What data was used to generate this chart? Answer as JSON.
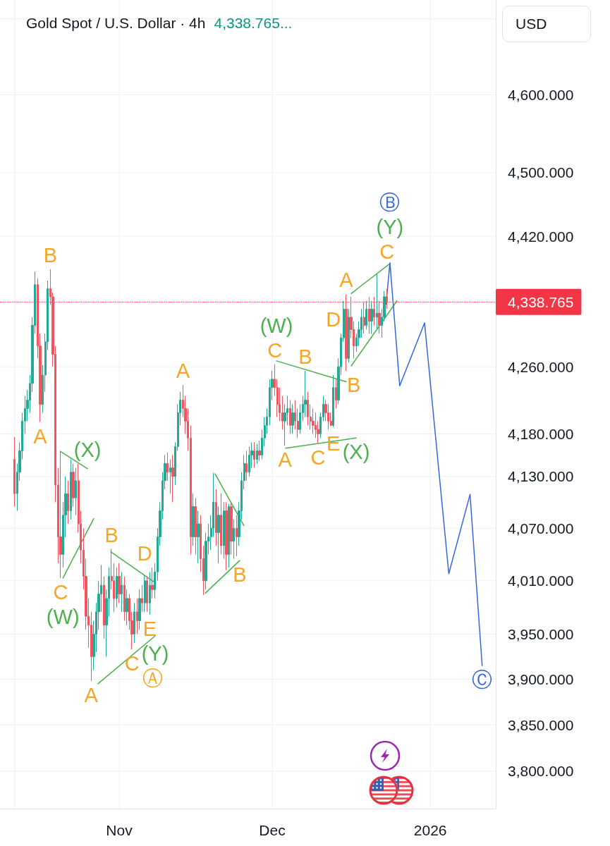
{
  "chart_data": {
    "type": "candlestick",
    "title": "Gold Spot / U.S. Dollar · 4h",
    "subtitle": "4,338.765...",
    "ylabel": "USD",
    "x": [
      "2025-10-11T12:00",
      "2025-10-12",
      "2025-10-12T12:00",
      "2025-10-13",
      "2025-10-13T12:00",
      "2025-10-14",
      "2025-10-14T12:00",
      "2025-10-15",
      "2025-10-15T12:00",
      "2025-10-16",
      "2025-10-16T12:00",
      "2025-10-17",
      "2025-10-17T12:00",
      "2025-10-18",
      "2025-10-18T12:00",
      "2025-10-19",
      "2025-10-19T12:00",
      "2025-10-20",
      "2025-10-20T12:00",
      "2025-10-21",
      "2025-10-21T12:00",
      "2025-10-22",
      "2025-10-22T12:00",
      "2025-10-23",
      "2025-10-23T12:00",
      "2025-10-24",
      "2025-10-24T12:00",
      "2025-10-25",
      "2025-10-25T12:00",
      "2025-10-26",
      "2025-10-26T12:00",
      "2025-10-27",
      "2025-10-27T12:00",
      "2025-10-28",
      "2025-10-28T12:00",
      "2025-10-29",
      "2025-10-29T12:00",
      "2025-10-30",
      "2025-10-30T12:00",
      "2025-10-31",
      "2025-10-31T12:00",
      "2025-11-01",
      "2025-11-01T12:00",
      "2025-11-02",
      "2025-11-02T12:00",
      "2025-11-03",
      "2025-11-03T12:00",
      "2025-11-04",
      "2025-11-04T12:00",
      "2025-11-05",
      "2025-11-05T12:00",
      "2025-11-06",
      "2025-11-06T12:00",
      "2025-11-07",
      "2025-11-07T12:00",
      "2025-11-08",
      "2025-11-08T12:00",
      "2025-11-09",
      "2025-11-09T12:00",
      "2025-11-10",
      "2025-11-10T12:00",
      "2025-11-11",
      "2025-11-11T12:00",
      "2025-11-12",
      "2025-11-12T12:00",
      "2025-11-13",
      "2025-11-13T12:00",
      "2025-11-14",
      "2025-11-14T12:00",
      "2025-11-15",
      "2025-11-15T12:00",
      "2025-11-16",
      "2025-11-16T12:00",
      "2025-11-17",
      "2025-11-17T12:00",
      "2025-11-18",
      "2025-11-18T12:00",
      "2025-11-19",
      "2025-11-19T12:00",
      "2025-11-20",
      "2025-11-20T12:00",
      "2025-11-21",
      "2025-11-21T12:00",
      "2025-11-22",
      "2025-11-22T12:00",
      "2025-11-23",
      "2025-11-23T12:00",
      "2025-11-24",
      "2025-11-24T12:00",
      "2025-11-25",
      "2025-11-25T12:00",
      "2025-11-26",
      "2025-11-26T12:00",
      "2025-11-27",
      "2025-11-27T12:00",
      "2025-11-28",
      "2025-11-28T12:00",
      "2025-11-29",
      "2025-11-29T12:00",
      "2025-11-30",
      "2025-11-30T12:00",
      "2025-12-01",
      "2025-12-01T12:00",
      "2025-12-02",
      "2025-12-02T12:00",
      "2025-12-03",
      "2025-12-03T12:00",
      "2025-12-04",
      "2025-12-04T12:00",
      "2025-12-05",
      "2025-12-05T12:00",
      "2025-12-06",
      "2025-12-06T12:00",
      "2025-12-07",
      "2025-12-07T12:00",
      "2025-12-08",
      "2025-12-08T12:00",
      "2025-12-09",
      "2025-12-09T12:00",
      "2025-12-10",
      "2025-12-10T12:00",
      "2025-12-11",
      "2025-12-11T12:00",
      "2025-12-12",
      "2025-12-12T12:00",
      "2025-12-13",
      "2025-12-13T12:00",
      "2025-12-14",
      "2025-12-14T12:00",
      "2025-12-15",
      "2025-12-15T12:00",
      "2025-12-16",
      "2025-12-16T12:00",
      "2025-12-17",
      "2025-12-17T12:00",
      "2025-12-18",
      "2025-12-18T12:00",
      "2025-12-19",
      "2025-12-19T12:00",
      "2025-12-20",
      "2025-12-20T12:00",
      "2025-12-21",
      "2025-12-21T12:00",
      "2025-12-22",
      "2025-12-22T12:00",
      "2025-12-23",
      "2025-12-23T12:00"
    ],
    "ohlc": [
      [
        4150,
        4176,
        4095,
        4110
      ],
      [
        4110,
        4145,
        4090,
        4135
      ],
      [
        4135,
        4170,
        4125,
        4160
      ],
      [
        4160,
        4205,
        4150,
        4195
      ],
      [
        4195,
        4225,
        4180,
        4210
      ],
      [
        4210,
        4232,
        4195,
        4220
      ],
      [
        4220,
        4250,
        4205,
        4240
      ],
      [
        4240,
        4320,
        4230,
        4310
      ],
      [
        4310,
        4376,
        4300,
        4360
      ],
      [
        4360,
        4368,
        4270,
        4285
      ],
      [
        4285,
        4300,
        4194,
        4215
      ],
      [
        4215,
        4262,
        4205,
        4250
      ],
      [
        4250,
        4300,
        4230,
        4290
      ],
      [
        4290,
        4365,
        4280,
        4355
      ],
      [
        4355,
        4379,
        4335,
        4345
      ],
      [
        4345,
        4350,
        4260,
        4275
      ],
      [
        4275,
        4285,
        4100,
        4120
      ],
      [
        4120,
        4140,
        4030,
        4060
      ],
      [
        4060,
        4160,
        4013,
        4040
      ],
      [
        4040,
        4100,
        4025,
        4085
      ],
      [
        4085,
        4130,
        4060,
        4110
      ],
      [
        4110,
        4125,
        4075,
        4090
      ],
      [
        4090,
        4150,
        4080,
        4135
      ],
      [
        4135,
        4145,
        4095,
        4105
      ],
      [
        4105,
        4140,
        4085,
        4125
      ],
      [
        4125,
        4145,
        4065,
        4075
      ],
      [
        4075,
        4090,
        4030,
        4045
      ],
      [
        4045,
        4070,
        4000,
        4015
      ],
      [
        4015,
        4035,
        3955,
        3970
      ],
      [
        3970,
        3990,
        3935,
        3960
      ],
      [
        3960,
        3975,
        3898,
        3925
      ],
      [
        3925,
        3965,
        3910,
        3950
      ],
      [
        3950,
        3985,
        3930,
        3975
      ],
      [
        3975,
        4010,
        3955,
        3995
      ],
      [
        3995,
        4028,
        3975,
        4005
      ],
      [
        4005,
        4015,
        3945,
        3960
      ],
      [
        3960,
        4000,
        3925,
        3990
      ],
      [
        3990,
        4025,
        3970,
        4015
      ],
      [
        4015,
        4046,
        4000,
        4010
      ],
      [
        4010,
        4030,
        3975,
        3990
      ],
      [
        3990,
        4025,
        3980,
        4015
      ],
      [
        4015,
        4030,
        3985,
        3995
      ],
      [
        3995,
        4020,
        3975,
        4005
      ],
      [
        4005,
        4015,
        3965,
        3975
      ],
      [
        3975,
        4000,
        3960,
        3990
      ],
      [
        3990,
        3995,
        3955,
        3965
      ],
      [
        3965,
        3975,
        3933,
        3950
      ],
      [
        3950,
        3985,
        3940,
        3975
      ],
      [
        3975,
        3990,
        3950,
        3965
      ],
      [
        3965,
        4000,
        3955,
        3990
      ],
      [
        3990,
        4005,
        3975,
        3985
      ],
      [
        3985,
        4016,
        3975,
        4010
      ],
      [
        4010,
        4015,
        3975,
        3985
      ],
      [
        3985,
        4020,
        3972,
        4005
      ],
      [
        4005,
        4025,
        3990,
        4000
      ],
      [
        4000,
        4030,
        3990,
        4020
      ],
      [
        4020,
        4070,
        4010,
        4060
      ],
      [
        4060,
        4100,
        4050,
        4090
      ],
      [
        4090,
        4135,
        4080,
        4125
      ],
      [
        4125,
        4155,
        4115,
        4145
      ],
      [
        4145,
        4158,
        4125,
        4135
      ],
      [
        4135,
        4150,
        4110,
        4140
      ],
      [
        4140,
        4155,
        4100,
        4130
      ],
      [
        4130,
        4170,
        4120,
        4165
      ],
      [
        4165,
        4215,
        4160,
        4205
      ],
      [
        4205,
        4230,
        4190,
        4220
      ],
      [
        4220,
        4238,
        4200,
        4210
      ],
      [
        4210,
        4225,
        4180,
        4195
      ],
      [
        4195,
        4210,
        4160,
        4175
      ],
      [
        4175,
        4190,
        4040,
        4060
      ],
      [
        4060,
        4110,
        4050,
        4095
      ],
      [
        4095,
        4105,
        4040,
        4060
      ],
      [
        4060,
        4090,
        4030,
        4075
      ],
      [
        4075,
        4085,
        4020,
        4035
      ],
      [
        4035,
        4050,
        3994,
        4010
      ],
      [
        4010,
        4065,
        4000,
        4055
      ],
      [
        4055,
        4075,
        4040,
        4060
      ],
      [
        4060,
        4085,
        4045,
        4070
      ],
      [
        4070,
        4134,
        4060,
        4100
      ],
      [
        4100,
        4115,
        4050,
        4065
      ],
      [
        4065,
        4095,
        4030,
        4085
      ],
      [
        4085,
        4110,
        4040,
        4050
      ],
      [
        4050,
        4100,
        4035,
        4090
      ],
      [
        4090,
        4100,
        4022,
        4040
      ],
      [
        4040,
        4098,
        4025,
        4095
      ],
      [
        4095,
        4100,
        4040,
        4055
      ],
      [
        4055,
        4080,
        4035,
        4070
      ],
      [
        4070,
        4085,
        4038,
        4060
      ],
      [
        4060,
        4100,
        4050,
        4090
      ],
      [
        4090,
        4135,
        4080,
        4125
      ],
      [
        4125,
        4155,
        4115,
        4145
      ],
      [
        4145,
        4160,
        4125,
        4135
      ],
      [
        4135,
        4165,
        4130,
        4155
      ],
      [
        4155,
        4170,
        4140,
        4160
      ],
      [
        4160,
        4170,
        4140,
        4150
      ],
      [
        4150,
        4168,
        4145,
        4160
      ],
      [
        4160,
        4172,
        4148,
        4155
      ],
      [
        4155,
        4185,
        4150,
        4175
      ],
      [
        4175,
        4200,
        4165,
        4190
      ],
      [
        4190,
        4210,
        4180,
        4200
      ],
      [
        4200,
        4245,
        4190,
        4235
      ],
      [
        4235,
        4255,
        4220,
        4245
      ],
      [
        4245,
        4263,
        4225,
        4235
      ],
      [
        4235,
        4245,
        4200,
        4215
      ],
      [
        4215,
        4235,
        4195,
        4205
      ],
      [
        4205,
        4225,
        4185,
        4195
      ],
      [
        4195,
        4215,
        4166,
        4205
      ],
      [
        4205,
        4225,
        4190,
        4210
      ],
      [
        4210,
        4220,
        4180,
        4190
      ],
      [
        4190,
        4215,
        4180,
        4205
      ],
      [
        4205,
        4220,
        4185,
        4195
      ],
      [
        4195,
        4210,
        4175,
        4185
      ],
      [
        4185,
        4215,
        4180,
        4205
      ],
      [
        4205,
        4225,
        4195,
        4215
      ],
      [
        4215,
        4255,
        4200,
        4220
      ],
      [
        4220,
        4230,
        4190,
        4200
      ],
      [
        4200,
        4215,
        4185,
        4195
      ],
      [
        4195,
        4210,
        4180,
        4190
      ],
      [
        4190,
        4205,
        4175,
        4185
      ],
      [
        4185,
        4195,
        4169,
        4180
      ],
      [
        4180,
        4205,
        4175,
        4200
      ],
      [
        4200,
        4225,
        4195,
        4215
      ],
      [
        4215,
        4220,
        4195,
        4205
      ],
      [
        4205,
        4215,
        4185,
        4195
      ],
      [
        4195,
        4205,
        4189,
        4190
      ],
      [
        4190,
        4250,
        4188,
        4235
      ],
      [
        4235,
        4245,
        4210,
        4220
      ],
      [
        4220,
        4270,
        4215,
        4260
      ],
      [
        4260,
        4300,
        4250,
        4295
      ],
      [
        4295,
        4340,
        4290,
        4330
      ],
      [
        4330,
        4348,
        4255,
        4270
      ],
      [
        4270,
        4330,
        4265,
        4320
      ],
      [
        4320,
        4345,
        4295,
        4305
      ],
      [
        4305,
        4315,
        4270,
        4285
      ],
      [
        4285,
        4300,
        4278,
        4295
      ],
      [
        4295,
        4315,
        4285,
        4305
      ],
      [
        4305,
        4330,
        4295,
        4320
      ],
      [
        4320,
        4338,
        4300,
        4310
      ],
      [
        4310,
        4340,
        4305,
        4330
      ],
      [
        4330,
        4345,
        4300,
        4315
      ],
      [
        4315,
        4340,
        4300,
        4330
      ],
      [
        4330,
        4345,
        4310,
        4320
      ],
      [
        4320,
        4373,
        4305,
        4325
      ],
      [
        4325,
        4340,
        4300,
        4310
      ],
      [
        4310,
        4330,
        4295,
        4320
      ],
      [
        4320,
        4352,
        4315,
        4345
      ],
      [
        4345,
        4355,
        4330,
        4338.765
      ]
    ],
    "colors": [
      "#f7525f",
      "#22ab94",
      "#22ab94",
      "#22ab94",
      "#22ab94",
      "#22ab94",
      "#22ab94",
      "#22ab94",
      "#22ab94",
      "#f7525f",
      "#f7525f",
      "#22ab94",
      "#22ab94",
      "#22ab94",
      "#f7525f",
      "#f7525f",
      "#f7525f",
      "#f7525f",
      "#f7525f",
      "#22ab94",
      "#22ab94",
      "#f7525f",
      "#22ab94",
      "#f7525f",
      "#22ab94",
      "#f7525f",
      "#f7525f",
      "#f7525f",
      "#f7525f",
      "#f7525f",
      "#f7525f",
      "#22ab94",
      "#22ab94",
      "#22ab94",
      "#22ab94",
      "#f7525f",
      "#22ab94",
      "#22ab94",
      "#f7525f",
      "#f7525f",
      "#22ab94",
      "#f7525f",
      "#22ab94",
      "#f7525f",
      "#22ab94",
      "#f7525f",
      "#f7525f",
      "#22ab94",
      "#f7525f",
      "#22ab94",
      "#f7525f",
      "#22ab94",
      "#f7525f",
      "#22ab94",
      "#f7525f",
      "#22ab94",
      "#22ab94",
      "#22ab94",
      "#22ab94",
      "#22ab94",
      "#f7525f",
      "#22ab94",
      "#f7525f",
      "#22ab94",
      "#22ab94",
      "#22ab94",
      "#f7525f",
      "#f7525f",
      "#f7525f",
      "#f7525f",
      "#22ab94",
      "#f7525f",
      "#22ab94",
      "#f7525f",
      "#f7525f",
      "#22ab94",
      "#22ab94",
      "#22ab94",
      "#22ab94",
      "#f7525f",
      "#22ab94",
      "#f7525f",
      "#22ab94",
      "#f7525f",
      "#22ab94",
      "#f7525f",
      "#22ab94",
      "#f7525f",
      "#22ab94",
      "#22ab94",
      "#22ab94",
      "#f7525f",
      "#22ab94",
      "#22ab94",
      "#f7525f",
      "#22ab94",
      "#f7525f",
      "#22ab94",
      "#22ab94",
      "#22ab94",
      "#22ab94",
      "#22ab94",
      "#f7525f",
      "#f7525f",
      "#f7525f",
      "#f7525f",
      "#22ab94",
      "#22ab94",
      "#f7525f",
      "#22ab94",
      "#f7525f",
      "#f7525f",
      "#22ab94",
      "#22ab94",
      "#22ab94",
      "#f7525f",
      "#f7525f",
      "#f7525f",
      "#f7525f",
      "#f7525f",
      "#22ab94",
      "#22ab94",
      "#f7525f",
      "#f7525f",
      "#f7525f",
      "#22ab94",
      "#f7525f",
      "#22ab94",
      "#22ab94",
      "#22ab94",
      "#f7525f",
      "#22ab94",
      "#f7525f",
      "#f7525f",
      "#22ab94",
      "#22ab94",
      "#22ab94",
      "#f7525f",
      "#22ab94",
      "#f7525f",
      "#22ab94",
      "#f7525f",
      "#22ab94",
      "#f7525f",
      "#22ab94",
      "#22ab94",
      "#f7525f"
    ],
    "series": [
      {
        "type": "line",
        "color": "#4caf50",
        "x": [
          "2025-10-20T13:00",
          "2025-10-25T19:00"
        ],
        "values": [
          4159,
          4139
        ],
        "value_labels": [
          null,
          "(X)"
        ]
      },
      {
        "type": "line",
        "color": "#4caf50",
        "x": [
          "2025-10-20T23:00",
          "2025-10-27"
        ],
        "values": [
          4013,
          4081
        ],
        "value_labels": [
          "(W)",
          null
        ]
      },
      {
        "type": "line",
        "color": "#4caf50",
        "x": [
          "2025-10-30T08:00",
          "2025-11-07T18:00"
        ],
        "values": [
          4043,
          4009
        ]
      },
      {
        "type": "line",
        "color": "#4caf50",
        "x": [
          "2025-10-27T20:00",
          "2025-11-08T01:00"
        ],
        "values": [
          3895,
          3948
        ],
        "value_labels": [
          null,
          "(Y)"
        ]
      },
      {
        "type": "line",
        "color": "#4caf50",
        "x": [
          "2025-11-19T19:00",
          "2025-11-25T11:00"
        ],
        "values": [
          4133,
          4073
        ]
      },
      {
        "type": "line",
        "color": "#4caf50",
        "x": [
          "2025-11-17T21:00",
          "2025-11-24T15:00"
        ],
        "values": [
          3996,
          4033
        ]
      },
      {
        "type": "line",
        "color": "#4caf50",
        "x": [
          "2025-12-01T20:00",
          "2025-12-15T12:00"
        ],
        "values": [
          4267,
          4242
        ],
        "value_labels": [
          "(W)",
          null
        ]
      },
      {
        "type": "line",
        "color": "#4caf50",
        "x": [
          "2025-12-03T15:00",
          "2025-12-17T11:00"
        ],
        "values": [
          4163,
          4175
        ],
        "value_labels": [
          null,
          "(X)"
        ]
      },
      {
        "type": "line",
        "color": "#4caf50",
        "x": [
          "2025-12-16T12:00",
          "2025-12-24T02:00"
        ],
        "values": [
          4349,
          4386
        ],
        "value_labels": [
          null,
          "(Y)"
        ]
      },
      {
        "type": "line",
        "color": "#4caf50",
        "x": [
          "2025-12-16T12:00",
          "2025-12-25T11:00"
        ],
        "values": [
          4261,
          4340
        ]
      },
      {
        "type": "line",
        "color": "#3566e0",
        "x": [
          "2025-12-23T08:00",
          "2025-12-24T02:00",
          "2025-12-26",
          "2025-12-30T21:00",
          "2026-01-04T15:00",
          "2026-01-08T19:00",
          "2026-01-11T04:00"
        ],
        "values": [
          4336,
          4387,
          4237,
          4313,
          4018,
          4109,
          3915
        ],
        "value_labels": [
          null,
          "Ⓑ",
          null,
          null,
          null,
          null,
          "Ⓒ"
        ]
      }
    ],
    "annotations": [
      {
        "text": "B",
        "x": "2025-10-18T12:00",
        "y": 4379
      },
      {
        "text": "A",
        "x": "2025-10-16T12:00",
        "y": 4194
      },
      {
        "text": "C",
        "x": "2025-10-20T12:00",
        "y": 4013
      },
      {
        "text": "A",
        "x": "2025-11-13T12:00",
        "y": 4238
      },
      {
        "text": "B",
        "x": "2025-11-24T15:00",
        "y": 4033
      },
      {
        "text": "C",
        "x": "2025-12-01T12:00",
        "y": 4263
      },
      {
        "text": "A",
        "x": "2025-12-15T12:00",
        "y": 4348
      },
      {
        "text": "B",
        "x": "2025-12-17",
        "y": 4270
      },
      {
        "text": "C",
        "x": "2025-12-23T12:00",
        "y": 4383
      },
      {
        "text": "B",
        "x": "2025-10-30T12:00",
        "y": 4046
      },
      {
        "text": "A",
        "x": "2025-10-26T12:00",
        "y": 3898
      },
      {
        "text": "C",
        "x": "2025-11-03T12:00",
        "y": 3933
      },
      {
        "text": "D",
        "x": "2025-11-06",
        "y": 4016
      },
      {
        "text": "E",
        "x": "2025-11-07",
        "y": 3972
      },
      {
        "text": "A",
        "x": "2025-12-03T12:00",
        "y": 4166
      },
      {
        "text": "B",
        "x": "2025-12-07T12:00",
        "y": 4255
      },
      {
        "text": "C",
        "x": "2025-12-10",
        "y": 4169
      },
      {
        "text": "D",
        "x": "2025-12-13",
        "y": 4250
      },
      {
        "text": "E",
        "x": "2025-12-13",
        "y": 4188
      },
      {
        "text": "Ⓐ",
        "x": "2025-11-07T12:00",
        "y": 3945
      }
    ],
    "ref_lines": [
      {
        "axis": "y",
        "value": 4338.765,
        "label": "4,338.765",
        "color": "#f23645",
        "line_style": "dotted"
      }
    ],
    "xlim": [
      "2025-10-08T15:00",
      "2026-01-13T20:00"
    ],
    "xticks": [
      {
        "value": "2025-10-11T12:00",
        "label": null
      },
      {
        "value": "2025-11-01",
        "label": "Nov"
      },
      {
        "value": "2025-12-01",
        "label": "Dec"
      },
      {
        "value": "2026-01-01",
        "label": "2026"
      }
    ],
    "ylim": [
      3760,
      4725
    ],
    "yticks": [
      {
        "value": 3800,
        "label": "3,800.000"
      },
      {
        "value": 3850,
        "label": "3,850.000"
      },
      {
        "value": 3900,
        "label": "3,900.000"
      },
      {
        "value": 3950,
        "label": "3,950.000"
      },
      {
        "value": 4010,
        "label": "4,010.000"
      },
      {
        "value": 4070,
        "label": "4,070.000"
      },
      {
        "value": 4130,
        "label": "4,130.000"
      },
      {
        "value": 4180,
        "label": "4,180.000"
      },
      {
        "value": 4260,
        "label": "4,260.000"
      },
      {
        "value": 4420,
        "label": "4,420.000"
      },
      {
        "value": 4500,
        "label": "4,500.000"
      },
      {
        "value": 4600,
        "label": "4,600.000"
      },
      {
        "value": 4700,
        "label": null
      }
    ],
    "log": "y",
    "grid": true,
    "marker": "none"
  }
}
